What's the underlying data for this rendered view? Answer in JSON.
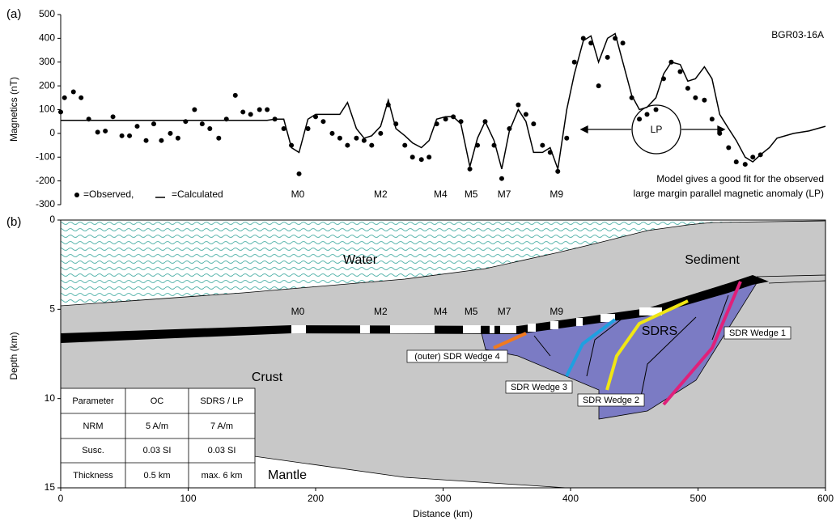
{
  "chart_data": [
    {
      "type": "line",
      "title": "(a)",
      "ylabel": "Magnetics (nT)",
      "label": "BGR03-16A",
      "xlim": [
        0,
        600
      ],
      "ylim": [
        -300,
        500
      ],
      "yticks": [
        -300,
        -200,
        -100,
        0,
        100,
        200,
        300,
        400,
        500
      ],
      "annotation": [
        "Model gives a good fit for the observed",
        "large margin parallel magnetic anomaly (LP)"
      ],
      "annotation_marker": "LP",
      "anomalies": [
        {
          "label": "M0",
          "x": 186
        },
        {
          "label": "M2",
          "x": 251
        },
        {
          "label": "M4",
          "x": 298
        },
        {
          "label": "M5",
          "x": 322
        },
        {
          "label": "M7",
          "x": 348
        },
        {
          "label": "M9",
          "x": 389
        }
      ],
      "series": [
        {
          "name": "=Observed,",
          "color": "#000000",
          "marker": "dot",
          "x": [
            0,
            3,
            10,
            16,
            22,
            29,
            35,
            41,
            48,
            54,
            60,
            67,
            73,
            79,
            86,
            92,
            98,
            105,
            111,
            117,
            124,
            130,
            137,
            143,
            149,
            156,
            162,
            168,
            175,
            181,
            187,
            194,
            200,
            206,
            213,
            219,
            225,
            232,
            238,
            244,
            251,
            257,
            263,
            270,
            276,
            283,
            289,
            295,
            302,
            308,
            314,
            321,
            327,
            333,
            340,
            346,
            352,
            359,
            365,
            371,
            378,
            384,
            390,
            397,
            403,
            410,
            416,
            422,
            429,
            435,
            441,
            448,
            454,
            460,
            467,
            473,
            479,
            486,
            492,
            498,
            505,
            511,
            517,
            524,
            530,
            537,
            543,
            549
          ],
          "values": [
            90,
            150,
            175,
            150,
            60,
            5,
            10,
            70,
            -10,
            -10,
            30,
            -30,
            40,
            -30,
            0,
            -20,
            50,
            100,
            40,
            20,
            -20,
            60,
            160,
            90,
            80,
            100,
            100,
            60,
            20,
            -50,
            -170,
            20,
            70,
            50,
            0,
            -20,
            -50,
            -20,
            -30,
            -50,
            0,
            120,
            40,
            -50,
            -100,
            -110,
            -100,
            40,
            60,
            70,
            50,
            -150,
            -50,
            50,
            -50,
            -190,
            20,
            120,
            80,
            40,
            -50,
            -80,
            -160,
            -20,
            300,
            400,
            380,
            200,
            320,
            400,
            380,
            150,
            60,
            80,
            100,
            230,
            300,
            260,
            190,
            150,
            140,
            60,
            0,
            -60,
            -120,
            -130,
            -100,
            -90
          ]
        },
        {
          "name": "=Calculated",
          "color": "#000000",
          "marker": "line",
          "x": [
            0,
            162,
            168,
            175,
            181,
            187,
            194,
            200,
            206,
            213,
            219,
            225,
            232,
            238,
            244,
            251,
            257,
            263,
            270,
            276,
            283,
            289,
            295,
            302,
            308,
            314,
            321,
            327,
            333,
            340,
            346,
            352,
            359,
            365,
            371,
            378,
            384,
            390,
            397,
            403,
            410,
            416,
            422,
            429,
            435,
            441,
            448,
            454,
            460,
            467,
            473,
            479,
            486,
            492,
            498,
            505,
            511,
            517,
            524,
            530,
            537,
            543,
            549,
            556,
            562,
            575,
            587,
            600
          ],
          "values": [
            55,
            55,
            60,
            60,
            -60,
            -80,
            60,
            80,
            80,
            80,
            80,
            130,
            20,
            -20,
            -10,
            30,
            140,
            20,
            -10,
            -40,
            -60,
            -30,
            60,
            70,
            70,
            40,
            -140,
            -20,
            50,
            -30,
            -150,
            10,
            100,
            50,
            -80,
            -80,
            -60,
            -150,
            100,
            250,
            390,
            410,
            300,
            400,
            420,
            300,
            160,
            100,
            110,
            150,
            250,
            300,
            290,
            220,
            230,
            280,
            230,
            80,
            20,
            -30,
            -100,
            -120,
            -90,
            -60,
            -20,
            0,
            10,
            30
          ]
        }
      ]
    },
    {
      "type": "section",
      "title": "(b)",
      "ylabel": "Depth (km)",
      "xlabel": "Distance (km)",
      "xlim": [
        0,
        600
      ],
      "xticks": [
        0,
        100,
        200,
        300,
        400,
        500,
        600
      ],
      "ylim": [
        15,
        0
      ],
      "yticks": [
        0,
        5,
        10,
        15
      ],
      "labels": [
        "Water",
        "Sediment",
        "Crust",
        "Mantle",
        "SDRS"
      ],
      "wedges": [
        "(outer) SDR Wedge 4",
        "SDR Wedge 3",
        "SDR Wedge 2",
        "SDR Wedge 1"
      ],
      "table": {
        "header": [
          "Parameter",
          "OC",
          "SDRS / LP"
        ],
        "rows": [
          [
            "NRM",
            "5 A/m",
            "7 A/m"
          ],
          [
            "Susc.",
            "0.03 SI",
            "0.03 SI"
          ],
          [
            "Thickness",
            "0.5 km",
            "max. 6 km"
          ]
        ]
      }
    }
  ]
}
